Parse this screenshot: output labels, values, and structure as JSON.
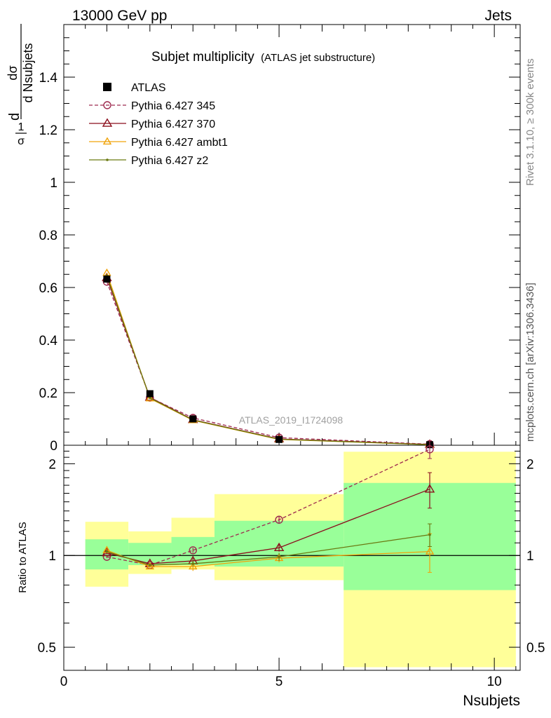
{
  "header": {
    "energy_label": "13000 GeV pp",
    "category_label": "Jets"
  },
  "side_text": {
    "rivet": "Rivet 3.1.10, ≥ 300k events",
    "mcplots": "mcplots.cern.ch [arXiv:1306.3436]"
  },
  "chart_data": {
    "type": "line",
    "title": "Subjet multiplicity",
    "title_note": "(ATLAS jet substructure)",
    "analysis_id": "ATLAS_2019_I1724098",
    "xlabel": "Nsubjets",
    "ylabel": "dσ / d Nsubjets × 1/σ",
    "ylabel_parts": {
      "frac1_num": "1",
      "frac1_den": "σ",
      "d_prefix": "d",
      "frac2_num": "dσ",
      "frac2_den": "d Nsubjets"
    },
    "ratio_ylabel": "Ratio to ATLAS",
    "xlim": [
      0,
      10.6
    ],
    "ylim": [
      0,
      1.6
    ],
    "ratio_ylim": [
      0.42,
      2.3
    ],
    "x_ticks": [
      0,
      5,
      10
    ],
    "y_ticks": [
      0,
      0.2,
      0.4,
      0.6,
      0.8,
      1,
      1.2,
      1.4
    ],
    "y_tick_labels": [
      "0",
      "0.2",
      "0.4",
      "0.6",
      "0.8",
      "1",
      "1.2",
      "1.4"
    ],
    "ratio_ticks": [
      0.5,
      1,
      2
    ],
    "ratio_tick_labels": [
      "0.5",
      "1",
      "2"
    ],
    "bins": [
      {
        "lo": 0.5,
        "hi": 1.5,
        "x": 1
      },
      {
        "lo": 1.5,
        "hi": 2.5,
        "x": 2
      },
      {
        "lo": 2.5,
        "hi": 3.5,
        "x": 3
      },
      {
        "lo": 3.5,
        "hi": 6.5,
        "x": 5
      },
      {
        "lo": 6.5,
        "hi": 10.5,
        "x": 8.5
      }
    ],
    "data": {
      "name": "ATLAS",
      "values": [
        0.632,
        0.196,
        0.1,
        0.022,
        0.002
      ]
    },
    "uncertainty_bands": {
      "stat_lo": [
        0.9,
        0.93,
        0.93,
        0.92,
        0.77
      ],
      "stat_hi": [
        1.13,
        1.1,
        1.15,
        1.3,
        1.73
      ],
      "total_lo": [
        0.79,
        0.87,
        0.9,
        0.83,
        0.43
      ],
      "total_hi": [
        1.29,
        1.2,
        1.33,
        1.59,
        2.19
      ]
    },
    "series": [
      {
        "name": "Pythia 6.427 345",
        "color": "#9e2a4f",
        "marker": "circle",
        "dashed": true,
        "values": [
          0.622,
          0.181,
          0.104,
          0.029,
          0.004
        ],
        "ratio": [
          0.99,
          0.93,
          1.04,
          1.31,
          2.23
        ],
        "ratio_err": [
          0.01,
          0.01,
          0.02,
          0.03,
          0.15
        ]
      },
      {
        "name": "Pythia 6.427 370",
        "color": "#8b0e1c",
        "marker": "triangle",
        "dashed": false,
        "values": [
          0.637,
          0.182,
          0.097,
          0.024,
          0.003
        ],
        "ratio": [
          1.02,
          0.94,
          0.96,
          1.06,
          1.65
        ],
        "ratio_err": [
          0.01,
          0.01,
          0.02,
          0.03,
          0.22
        ]
      },
      {
        "name": "Pythia 6.427 ambt1",
        "color": "#f0a30a",
        "marker": "triangle",
        "dashed": false,
        "values": [
          0.655,
          0.178,
          0.095,
          0.022,
          0.002
        ],
        "ratio": [
          1.04,
          0.92,
          0.92,
          0.98,
          1.03
        ],
        "ratio_err": [
          0.01,
          0.01,
          0.03,
          0.03,
          0.15
        ]
      },
      {
        "name": "Pythia 6.427 z2",
        "color": "#6b7a12",
        "marker": "dot",
        "dashed": false,
        "values": [
          0.645,
          0.18,
          0.096,
          0.023,
          0.002
        ],
        "ratio": [
          1.03,
          0.93,
          0.94,
          0.99,
          1.17
        ],
        "ratio_err": [
          0.01,
          0.01,
          0.02,
          0.03,
          0.1
        ]
      }
    ],
    "legend_position": "top-left",
    "grid": false
  }
}
